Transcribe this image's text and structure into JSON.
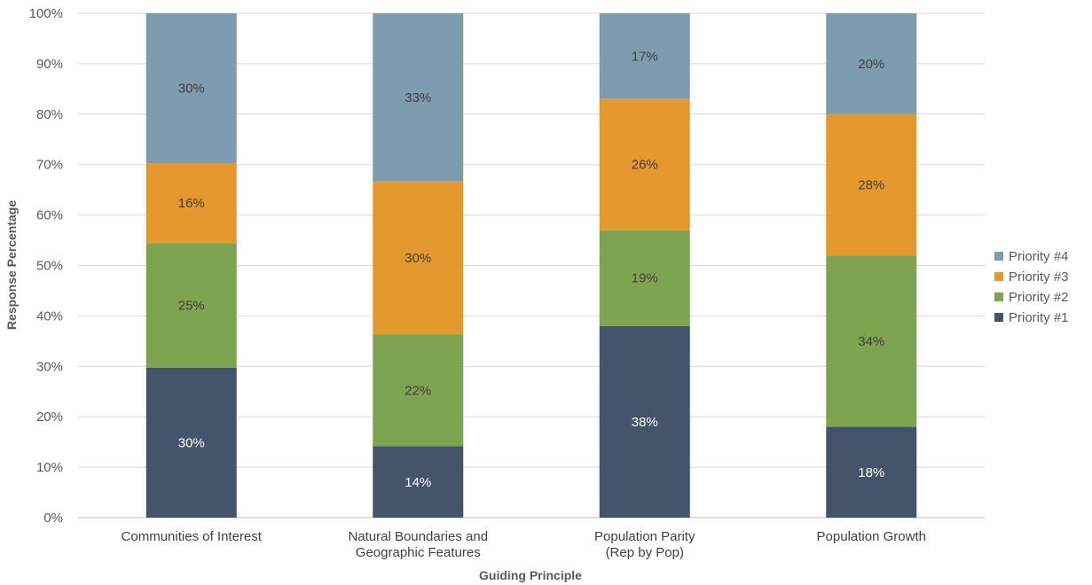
{
  "chart_data": {
    "type": "bar",
    "stacked": true,
    "categories": [
      [
        "Communities of Interest"
      ],
      [
        "Natural Boundaries and",
        "Geographic Features"
      ],
      [
        "Population Parity",
        "(Rep by Pop)"
      ],
      [
        "Population Growth"
      ]
    ],
    "series": [
      {
        "name": "Priority #1",
        "color": "#44546a",
        "label_color": "#ffffff",
        "values": [
          30,
          14,
          38,
          18
        ],
        "labels": [
          "30%",
          "14%",
          "38%",
          "18%"
        ]
      },
      {
        "name": "Priority #2",
        "color": "#7ea351",
        "label_color": "#404040",
        "values": [
          25,
          22,
          19,
          34
        ],
        "labels": [
          "25%",
          "22%",
          "19%",
          "34%"
        ]
      },
      {
        "name": "Priority #3",
        "color": "#e4982d",
        "label_color": "#404040",
        "values": [
          16,
          30,
          26,
          28
        ],
        "labels": [
          "16%",
          "30%",
          "26%",
          "28%"
        ]
      },
      {
        "name": "Priority #4",
        "color": "#7f9bb0",
        "label_color": "#404040",
        "values": [
          30,
          33,
          17,
          20
        ],
        "labels": [
          "30%",
          "33%",
          "17%",
          "20%"
        ]
      }
    ],
    "xlabel": "Guiding Principle",
    "ylabel": "Response Percentage",
    "ylim": [
      0,
      100
    ],
    "yticks": [
      "0%",
      "10%",
      "20%",
      "30%",
      "40%",
      "50%",
      "60%",
      "70%",
      "80%",
      "90%",
      "100%"
    ],
    "grid": true,
    "legend_position": "right"
  }
}
